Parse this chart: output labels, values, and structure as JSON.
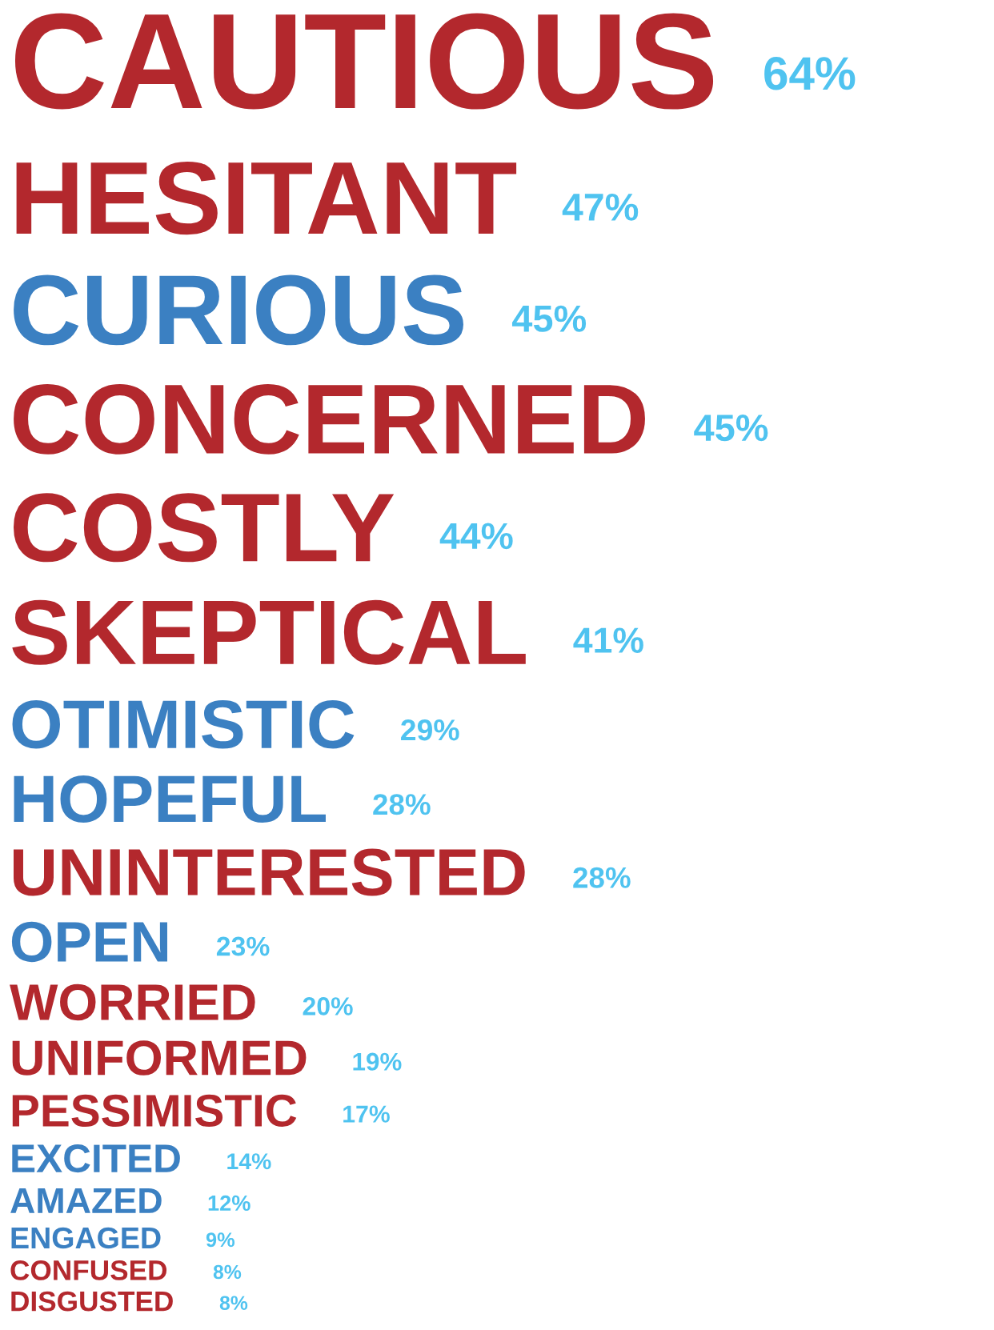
{
  "chart_data": {
    "type": "other",
    "categories": [
      "CAUTIOUS",
      "HESITANT",
      "CURIOUS",
      "CONCERNED",
      "COSTLY",
      "SKEPTICAL",
      "OTIMISTIC",
      "HOPEFUL",
      "UNINTERESTED",
      "OPEN",
      "WORRIED",
      "UNIFORMED",
      "PESSIMISTIC",
      "EXCITED",
      "AMAZED",
      "ENGAGED",
      "CONFUSED",
      "DISGUSTED"
    ],
    "values": [
      64,
      47,
      45,
      45,
      44,
      41,
      29,
      28,
      28,
      23,
      20,
      19,
      17,
      14,
      12,
      9,
      8,
      8
    ],
    "value_labels": [
      "64%",
      "47%",
      "45%",
      "45%",
      "44%",
      "41%",
      "29%",
      "28%",
      "28%",
      "23%",
      "20%",
      "19%",
      "17%",
      "14%",
      "12%",
      "9%",
      "8%",
      "8%"
    ],
    "colors": [
      "#b3282d",
      "#b3282d",
      "#3b80c2",
      "#b3282d",
      "#b3282d",
      "#b3282d",
      "#3b80c2",
      "#3b80c2",
      "#b3282d",
      "#3b80c2",
      "#b3282d",
      "#b3282d",
      "#b3282d",
      "#3b80c2",
      "#3b80c2",
      "#3b80c2",
      "#b3282d",
      "#b3282d"
    ]
  }
}
